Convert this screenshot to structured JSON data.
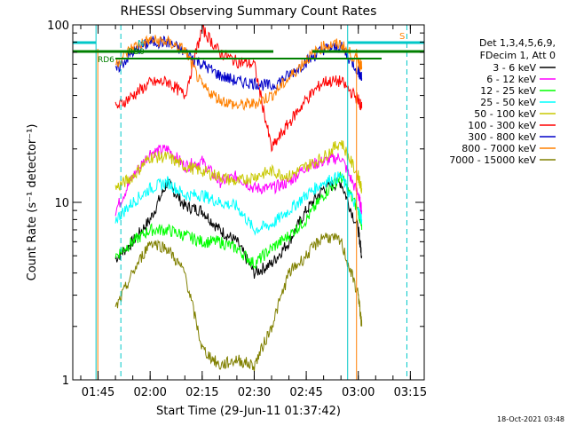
{
  "chart_data": {
    "type": "line",
    "title": "RHESSI Observing Summary Count Rates",
    "xlabel": "Start Time (29-Jun-11 01:37:42)",
    "ylabel": "Count Rate (s⁻¹ detector⁻¹)",
    "yscale": "log",
    "ylim": [
      1,
      100
    ],
    "xlim": [
      "01:37:42",
      "03:19:00"
    ],
    "ytick_labels": [
      "1",
      "10",
      "100"
    ],
    "xtick_labels": [
      "01:45",
      "02:00",
      "02:15",
      "02:30",
      "02:45",
      "03:00",
      "03:15"
    ],
    "legend_header": [
      "Det 1,3,4,5,6,9,",
      "FDecim 1, Att 0"
    ],
    "legend_position": "right",
    "footer_date": "18-Oct-2021 03:48",
    "annotations": [
      {
        "text": "N",
        "color": "#00c8c8"
      },
      {
        "text": "S",
        "color": "#ff8000"
      },
      {
        "text": "RD6",
        "color": "#008000"
      },
      {
        "text": "RD0",
        "color": "#008000"
      }
    ],
    "series": [
      {
        "name": "3 - 6 keV",
        "color": "#000000",
        "times": [
          "01:50",
          "01:55",
          "02:00",
          "02:05",
          "02:10",
          "02:15",
          "02:20",
          "02:25",
          "02:30",
          "02:35",
          "02:40",
          "02:45",
          "02:50",
          "02:55",
          "03:00",
          "03:01"
        ],
        "values": [
          4.8,
          6,
          8,
          13,
          9.5,
          9,
          7,
          6,
          4,
          4.5,
          6,
          9,
          12,
          13,
          7,
          5
        ]
      },
      {
        "name": "6 - 12 keV",
        "color": "#ff00ff",
        "times": [
          "01:50",
          "01:55",
          "02:00",
          "02:05",
          "02:10",
          "02:15",
          "02:20",
          "02:25",
          "02:30",
          "02:35",
          "02:40",
          "02:45",
          "02:50",
          "02:55",
          "03:00",
          "03:01"
        ],
        "values": [
          9,
          14,
          19,
          20,
          16,
          17,
          13,
          14,
          12,
          12,
          13,
          16,
          17,
          18,
          11,
          9
        ]
      },
      {
        "name": "12 - 25 keV",
        "color": "#00ff00",
        "times": [
          "01:50",
          "01:55",
          "02:00",
          "02:05",
          "02:10",
          "02:15",
          "02:20",
          "02:25",
          "02:30",
          "02:35",
          "02:40",
          "02:45",
          "02:50",
          "02:55",
          "03:00",
          "03:01"
        ],
        "values": [
          5,
          6,
          7,
          7,
          6.5,
          6,
          6,
          5.5,
          4.5,
          5.5,
          6.5,
          8,
          11,
          14,
          9,
          7
        ]
      },
      {
        "name": "25 - 50 keV",
        "color": "#00ffff",
        "times": [
          "01:50",
          "01:55",
          "02:00",
          "02:05",
          "02:10",
          "02:15",
          "02:20",
          "02:25",
          "02:30",
          "02:35",
          "02:40",
          "02:45",
          "02:50",
          "02:55",
          "03:00",
          "03:01"
        ],
        "values": [
          8,
          10,
          12,
          13,
          11,
          11,
          10,
          9.5,
          7,
          7.5,
          9,
          11,
          13,
          14,
          9,
          8
        ]
      },
      {
        "name": "50 - 100 keV",
        "color": "#c8c800",
        "times": [
          "01:50",
          "01:55",
          "02:00",
          "02:05",
          "02:10",
          "02:15",
          "02:20",
          "02:25",
          "02:30",
          "02:35",
          "02:40",
          "02:45",
          "02:50",
          "02:55",
          "03:00",
          "03:01"
        ],
        "values": [
          12,
          14,
          18,
          18,
          16,
          15,
          14,
          13,
          14,
          15,
          14,
          16,
          18,
          22,
          14,
          12
        ]
      },
      {
        "name": "100 - 300 keV",
        "color": "#ff0000",
        "times": [
          "01:50",
          "01:55",
          "02:00",
          "02:05",
          "02:10",
          "02:15",
          "02:20",
          "02:25",
          "02:30",
          "02:35",
          "02:40",
          "02:45",
          "02:50",
          "02:55",
          "03:00",
          "03:01"
        ],
        "values": [
          34,
          40,
          47,
          48,
          40,
          95,
          70,
          62,
          60,
          20,
          28,
          38,
          48,
          48,
          38,
          34
        ]
      },
      {
        "name": "300 - 800 keV",
        "color": "#0000c8",
        "times": [
          "01:50",
          "01:55",
          "02:00",
          "02:05",
          "02:10",
          "02:15",
          "02:20",
          "02:25",
          "02:30",
          "02:35",
          "02:40",
          "02:45",
          "02:50",
          "02:55",
          "03:00",
          "03:01"
        ],
        "values": [
          55,
          70,
          80,
          80,
          70,
          60,
          52,
          48,
          47,
          45,
          52,
          62,
          73,
          75,
          55,
          50
        ]
      },
      {
        "name": "800 - 7000 keV",
        "color": "#ff8000",
        "times": [
          "01:50",
          "01:55",
          "02:00",
          "02:05",
          "02:10",
          "02:15",
          "02:20",
          "02:25",
          "02:30",
          "02:35",
          "02:40",
          "02:45",
          "02:50",
          "02:55",
          "03:00",
          "03:01"
        ],
        "values": [
          60,
          75,
          82,
          80,
          72,
          45,
          38,
          35,
          36,
          40,
          50,
          64,
          76,
          78,
          62,
          58
        ]
      },
      {
        "name": "7000 - 15000 keV",
        "color": "#808000",
        "times": [
          "01:50",
          "01:55",
          "02:00",
          "02:05",
          "02:10",
          "02:15",
          "02:20",
          "02:25",
          "02:30",
          "02:35",
          "02:40",
          "02:45",
          "02:50",
          "02:55",
          "03:00",
          "03:01"
        ],
        "values": [
          2.5,
          4,
          6,
          5.5,
          4,
          1.5,
          1.2,
          1.3,
          1.2,
          2,
          4,
          5,
          6.5,
          6,
          3,
          2
        ]
      }
    ]
  }
}
